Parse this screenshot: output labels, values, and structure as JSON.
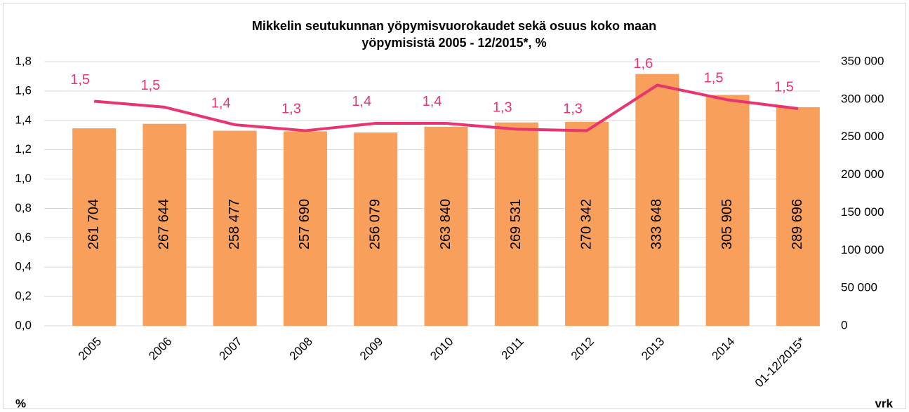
{
  "chart_data": {
    "type": "combo",
    "title": "Mikkelin seutukunnan yöpymisvuorokaudet sekä osuus koko maan yöpymisistä 2005 - 12/2015*, %",
    "ylabel": "%",
    "y2label": "vrk",
    "categories": [
      "2005",
      "2006",
      "2007",
      "2008",
      "2009",
      "2010",
      "2011",
      "2012",
      "2013",
      "2014",
      "01-12/2015*"
    ],
    "series": [
      {
        "type": "bar",
        "axis": "y2",
        "color": "#f79f5b",
        "values": [
          261704,
          267644,
          258477,
          257690,
          256079,
          263840,
          269531,
          270342,
          333648,
          305905,
          289696
        ],
        "value_labels": [
          "261 704",
          "267 644",
          "258 477",
          "257 690",
          "256 079",
          "263 840",
          "269 531",
          "270 342",
          "333 648",
          "305 905",
          "289 696"
        ]
      },
      {
        "type": "line",
        "color": "#e8356f",
        "values": [
          1.53,
          1.49,
          1.37,
          1.33,
          1.38,
          1.38,
          1.34,
          1.33,
          1.64,
          1.54,
          1.48
        ],
        "value_labels": [
          "1,5",
          "1,5",
          "1,4",
          "1,3",
          "1,4",
          "1,4",
          "1,3",
          "1,3",
          "1,6",
          "1,5",
          "1,5"
        ]
      }
    ],
    "ylim": [
      0,
      1.8
    ],
    "yticks": [
      {
        "value": 0,
        "label": "0,0"
      },
      {
        "value": 0.2,
        "label": "0,2"
      },
      {
        "value": 0.4,
        "label": "0,4"
      },
      {
        "value": 0.6,
        "label": "0,6"
      },
      {
        "value": 0.8,
        "label": "0,8"
      },
      {
        "value": 1.0,
        "label": "1,0"
      },
      {
        "value": 1.2,
        "label": "1,2"
      },
      {
        "value": 1.4,
        "label": "1,4"
      },
      {
        "value": 1.6,
        "label": "1,6"
      },
      {
        "value": 1.8,
        "label": "1,8"
      }
    ],
    "y2lim": [
      0,
      350000
    ],
    "y2ticks": [
      0,
      {
        "value": 50000,
        "label": "50 000"
      },
      {
        "value": 100000,
        "label": "100 000"
      },
      {
        "value": 150000,
        "label": "150 000"
      },
      {
        "value": 200000,
        "label": "200 000"
      },
      {
        "value": 250000,
        "label": "250 000"
      },
      {
        "value": 300000,
        "label": "300 000"
      },
      {
        "value": 350000,
        "label": "350 000"
      }
    ],
    "grid": true
  }
}
